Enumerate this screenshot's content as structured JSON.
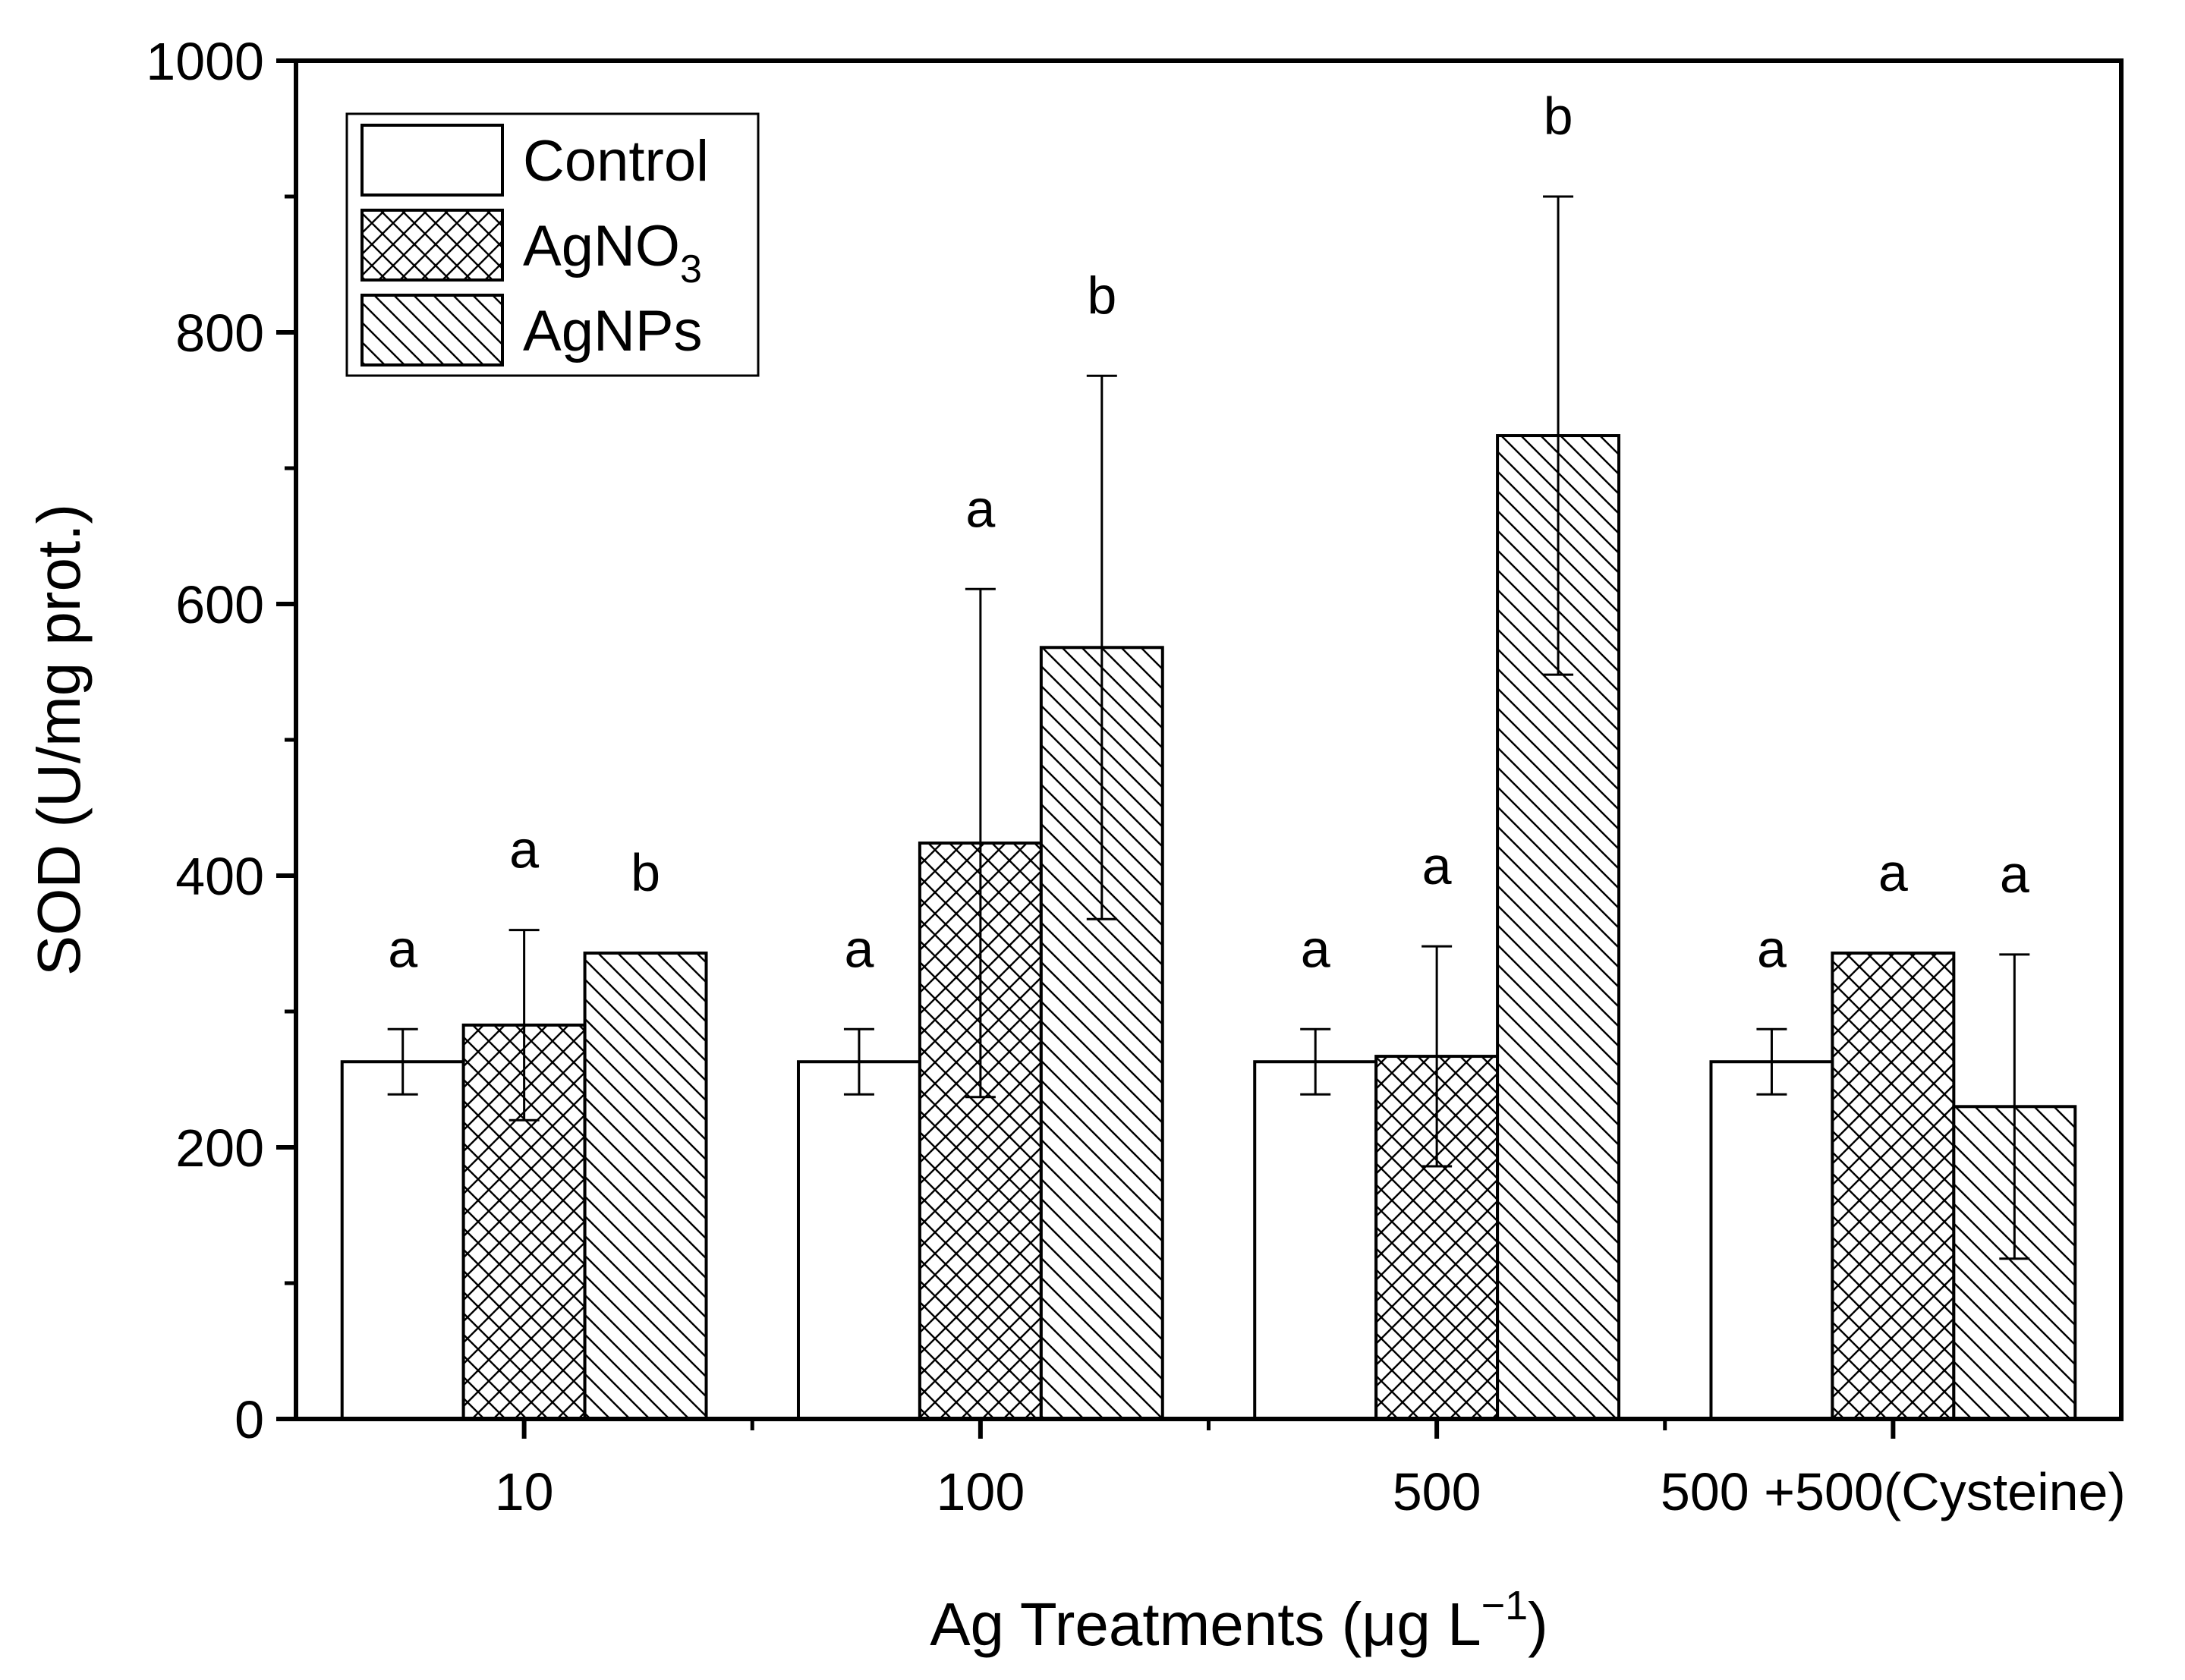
{
  "chart_data": {
    "type": "bar",
    "title": "",
    "xlabel": "Ag Treatments (μg L⁻¹)",
    "ylabel": "SOD (U/mg prot.)",
    "ylim": [
      0,
      1000
    ],
    "yticks": [
      0,
      200,
      400,
      600,
      800,
      1000
    ],
    "categories": [
      "10",
      "100",
      "500",
      "500 +500(Cysteine)"
    ],
    "series": [
      {
        "name": "Control",
        "pattern": "none",
        "values": [
          263,
          263,
          263,
          263
        ],
        "errors": [
          24,
          24,
          24,
          24
        ],
        "letters": [
          "a",
          "a",
          "a",
          "a"
        ]
      },
      {
        "name": "AgNO₃",
        "pattern": "crosshatch",
        "values": [
          290,
          424,
          267,
          343
        ],
        "errors": [
          70,
          187,
          81,
          0
        ],
        "letters": [
          "a",
          "a",
          "a",
          "a"
        ]
      },
      {
        "name": "AgNPs",
        "pattern": "diagonal",
        "values": [
          343,
          568,
          724,
          230
        ],
        "errors": [
          0,
          200,
          176,
          112
        ],
        "letters": [
          "b",
          "b",
          "b",
          "a"
        ]
      }
    ],
    "legend": {
      "position": "top-left",
      "entries": [
        "Control",
        "AgNO₃",
        "AgNPs"
      ]
    },
    "colors": {
      "stroke": "#000000",
      "fill": "#ffffff"
    }
  }
}
